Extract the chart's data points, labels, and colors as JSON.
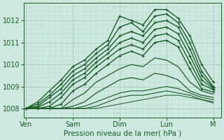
{
  "bg_color": "#cce8df",
  "plot_bg_color": "#cce8df",
  "grid_major_color": "#aaccbb",
  "grid_minor_color": "#bbddcc",
  "line_color": "#1a5c28",
  "title": "Pression niveau de la mer( hPa )",
  "xtick_labels": [
    "Ven",
    "Sam",
    "Dim",
    "Lun",
    "M"
  ],
  "xtick_positions": [
    0,
    24,
    48,
    72,
    96
  ],
  "ylim": [
    1007.6,
    1012.8
  ],
  "yticks": [
    1008,
    1009,
    1010,
    1011,
    1012
  ],
  "xlim": [
    -1,
    100
  ],
  "lines": [
    {
      "x": [
        0,
        6,
        12,
        18,
        24,
        30,
        36,
        42,
        48,
        54,
        60,
        66,
        72,
        78,
        84,
        90,
        96
      ],
      "y": [
        1008.0,
        1008.3,
        1008.8,
        1009.3,
        1009.9,
        1010.2,
        1010.7,
        1011.1,
        1012.2,
        1012.0,
        1011.8,
        1012.5,
        1012.5,
        1012.1,
        1011.3,
        1010.0,
        1009.2
      ],
      "marker": true,
      "lw": 1.0
    },
    {
      "x": [
        0,
        6,
        12,
        18,
        24,
        30,
        36,
        42,
        48,
        54,
        60,
        66,
        72,
        78,
        84,
        90,
        96
      ],
      "y": [
        1008.0,
        1008.2,
        1008.6,
        1009.1,
        1009.7,
        1010.0,
        1010.5,
        1010.9,
        1011.7,
        1011.9,
        1011.5,
        1012.2,
        1012.3,
        1011.9,
        1011.0,
        1009.7,
        1009.0
      ],
      "marker": true,
      "lw": 1.0
    },
    {
      "x": [
        0,
        6,
        12,
        18,
        24,
        30,
        36,
        42,
        48,
        54,
        60,
        66,
        72,
        78,
        84,
        90,
        96
      ],
      "y": [
        1008.0,
        1008.1,
        1008.5,
        1008.9,
        1009.5,
        1009.8,
        1010.3,
        1010.7,
        1011.3,
        1011.5,
        1011.3,
        1011.9,
        1012.0,
        1011.7,
        1010.7,
        1009.5,
        1008.95
      ],
      "marker": true,
      "lw": 1.0
    },
    {
      "x": [
        0,
        6,
        12,
        18,
        24,
        30,
        36,
        42,
        48,
        54,
        60,
        66,
        72,
        78,
        84,
        90,
        96
      ],
      "y": [
        1008.0,
        1008.05,
        1008.3,
        1008.7,
        1009.3,
        1009.6,
        1010.1,
        1010.5,
        1011.0,
        1011.2,
        1011.0,
        1011.6,
        1011.7,
        1011.4,
        1010.4,
        1009.3,
        1008.9
      ],
      "marker": true,
      "lw": 1.0
    },
    {
      "x": [
        0,
        6,
        12,
        18,
        24,
        30,
        36,
        42,
        48,
        54,
        60,
        66,
        72,
        78,
        84,
        90,
        96
      ],
      "y": [
        1008.0,
        1008.0,
        1008.1,
        1008.5,
        1009.1,
        1009.4,
        1009.9,
        1010.3,
        1010.7,
        1010.9,
        1010.7,
        1011.3,
        1011.4,
        1011.1,
        1010.1,
        1009.1,
        1008.85
      ],
      "marker": true,
      "lw": 1.0
    },
    {
      "x": [
        0,
        6,
        12,
        18,
        24,
        30,
        36,
        42,
        48,
        54,
        60,
        66,
        72,
        78,
        84,
        90,
        96
      ],
      "y": [
        1008.0,
        1008.0,
        1008.0,
        1008.2,
        1008.8,
        1009.1,
        1009.6,
        1010.0,
        1010.4,
        1010.6,
        1010.4,
        1011.0,
        1011.1,
        1010.8,
        1009.8,
        1008.9,
        1008.75
      ],
      "marker": true,
      "lw": 1.0
    },
    {
      "x": [
        0,
        6,
        12,
        18,
        24,
        30,
        36,
        42,
        48,
        54,
        60,
        66,
        72,
        78,
        84,
        90,
        96
      ],
      "y": [
        1008.0,
        1008.0,
        1008.0,
        1008.0,
        1008.4,
        1008.7,
        1009.2,
        1009.5,
        1009.8,
        1010.0,
        1009.9,
        1010.3,
        1010.2,
        1009.9,
        1009.2,
        1008.8,
        1008.65
      ],
      "marker": false,
      "lw": 0.9
    },
    {
      "x": [
        0,
        6,
        12,
        18,
        24,
        30,
        36,
        42,
        48,
        54,
        60,
        66,
        72,
        78,
        84,
        90,
        96
      ],
      "y": [
        1008.0,
        1008.0,
        1008.0,
        1008.0,
        1008.1,
        1008.3,
        1008.7,
        1009.0,
        1009.3,
        1009.4,
        1009.3,
        1009.6,
        1009.5,
        1009.3,
        1008.8,
        1008.6,
        1008.5
      ],
      "marker": false,
      "lw": 0.9
    },
    {
      "x": [
        0,
        6,
        12,
        18,
        24,
        30,
        36,
        42,
        48,
        54,
        60,
        66,
        72,
        78,
        84,
        90,
        96
      ],
      "y": [
        1008.0,
        1008.0,
        1008.0,
        1008.0,
        1008.0,
        1008.1,
        1008.3,
        1008.5,
        1008.7,
        1008.8,
        1008.8,
        1008.9,
        1009.0,
        1008.9,
        1008.7,
        1008.5,
        1008.4
      ],
      "marker": false,
      "lw": 0.8
    },
    {
      "x": [
        0,
        6,
        12,
        18,
        24,
        30,
        36,
        42,
        48,
        54,
        60,
        66,
        72,
        78,
        84,
        90,
        96
      ],
      "y": [
        1008.0,
        1008.0,
        1008.0,
        1008.0,
        1008.0,
        1008.0,
        1008.1,
        1008.3,
        1008.5,
        1008.6,
        1008.6,
        1008.7,
        1008.8,
        1008.7,
        1008.6,
        1008.4,
        1008.3
      ],
      "marker": false,
      "lw": 0.8
    },
    {
      "x": [
        0,
        6,
        12,
        18,
        24,
        30,
        36,
        42,
        48,
        54,
        60,
        66,
        72,
        78,
        84,
        90,
        96
      ],
      "y": [
        1008.0,
        1008.0,
        1008.0,
        1008.0,
        1008.0,
        1008.0,
        1008.0,
        1008.1,
        1008.2,
        1008.3,
        1008.4,
        1008.5,
        1008.6,
        1008.6,
        1008.5,
        1008.4,
        1008.25
      ],
      "marker": false,
      "lw": 0.7
    }
  ]
}
